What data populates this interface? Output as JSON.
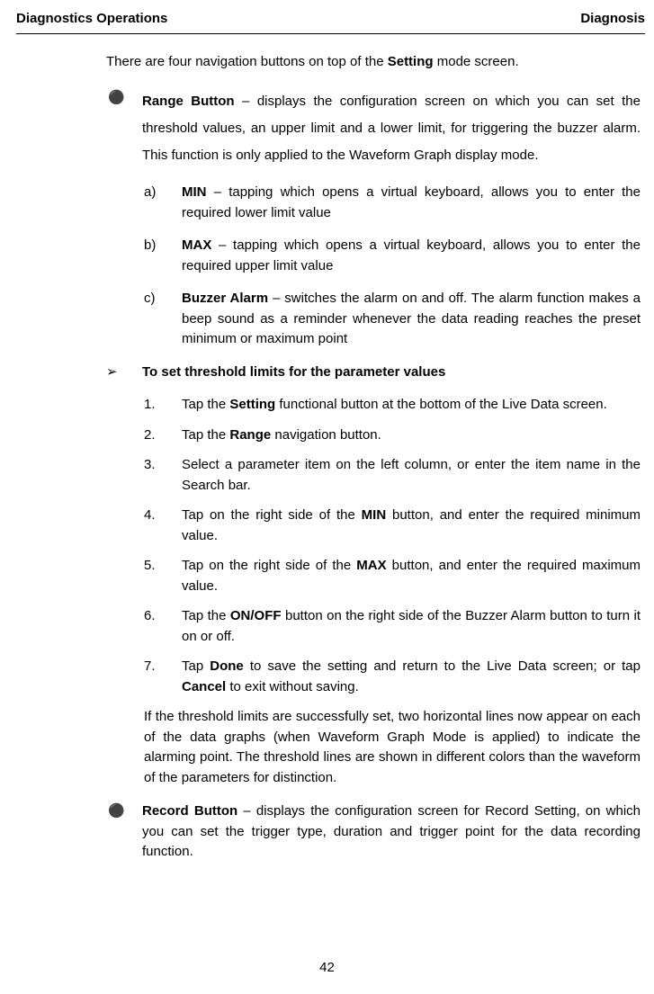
{
  "header": {
    "left": "Diagnostics Operations",
    "right": "Diagnosis"
  },
  "intro": {
    "pre": "There are four navigation buttons on top of the ",
    "bold": "Setting",
    "post": " mode screen."
  },
  "range": {
    "title": "Range Button",
    "desc": " – displays the configuration screen on which you can set the threshold values, an upper limit and a lower limit, for triggering the buzzer alarm. This function is only applied to the Waveform Graph display mode."
  },
  "subs": {
    "a_marker": "a)",
    "a_bold": "MIN",
    "a_text": " – tapping which opens a virtual keyboard, allows you to enter the required lower limit value",
    "b_marker": "b)",
    "b_bold": "MAX",
    "b_text": " – tapping which opens a virtual keyboard, allows you to enter the required upper limit value",
    "c_marker": "c)",
    "c_bold": "Buzzer Alarm",
    "c_text": " – switches the alarm on and off. The alarm function makes a beep sound as a reminder whenever the data reading reaches the preset minimum or maximum point"
  },
  "arrow": {
    "marker": "➢",
    "title": "To set threshold limits for the parameter values"
  },
  "steps": {
    "n1": "1.",
    "t1a": "Tap the ",
    "t1b": "Setting",
    "t1c": " functional button at the bottom of the Live Data screen.",
    "n2": "2.",
    "t2a": "Tap the ",
    "t2b": "Range",
    "t2c": " navigation button.",
    "n3": "3.",
    "t3": "Select a parameter item on the left column, or enter the item name in the Search bar.",
    "n4": "4.",
    "t4a": "Tap on the right side of the ",
    "t4b": "MIN",
    "t4c": " button, and enter the required minimum value.",
    "n5": "5.",
    "t5a": "Tap on the right side of the ",
    "t5b": "MAX",
    "t5c": " button, and enter the required maximum value.",
    "n6": "6.",
    "t6a": "Tap the ",
    "t6b": "ON/OFF",
    "t6c": " button on the right side of the Buzzer Alarm button to turn it on or off.",
    "n7": "7.",
    "t7a": "Tap ",
    "t7b": "Done",
    "t7c": " to save the setting and return to the Live Data screen; or tap ",
    "t7d": "Cancel",
    "t7e": " to exit without saving."
  },
  "after": "If the threshold limits are successfully set, two horizontal lines now appear on each of the data graphs (when Waveform Graph Mode is applied) to indicate the alarming point. The threshold lines are shown in different colors than the waveform of the parameters for distinction.",
  "record": {
    "title": "Record Button",
    "desc": " – displays the configuration screen for Record Setting, on which you can set the trigger type, duration and trigger point for the data recording function."
  },
  "footer": "42",
  "bullet_char": "⚫"
}
